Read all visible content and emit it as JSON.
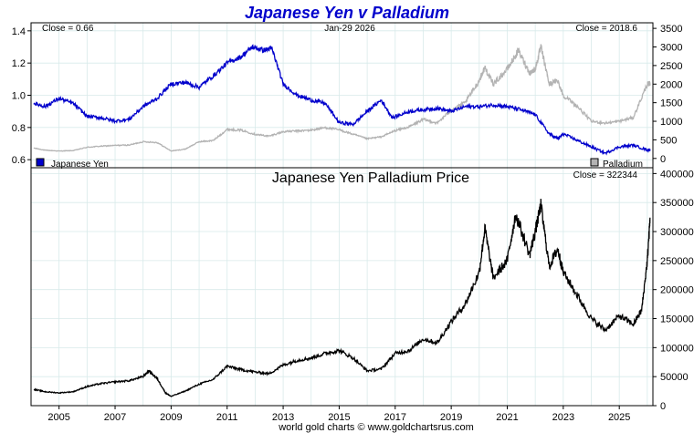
{
  "chart_data": [
    {
      "type": "line",
      "title": "Japanese Yen v Palladium",
      "date_label": "Jan-29  2026",
      "left_close_label": "Close = 0.66",
      "right_close_label": "Close = 2018.6",
      "x_ticks": [
        "2005",
        "2007",
        "2009",
        "2011",
        "2013",
        "2015",
        "2017",
        "2019",
        "2021",
        "2023",
        "2025"
      ],
      "left_axis": {
        "ylim": [
          0.55,
          1.45
        ],
        "ticks": [
          "0.6",
          "0.8",
          "1.0",
          "1.2",
          "1.4"
        ]
      },
      "right_axis": {
        "ylim": [
          -250,
          3650
        ],
        "ticks": [
          "0",
          "500",
          "1000",
          "1500",
          "2000",
          "2500",
          "3000",
          "3500"
        ]
      },
      "series": [
        {
          "name": "Japanese Yen",
          "color": "#0000cc",
          "axis": "left",
          "x": [
            2004.1,
            2004.5,
            2005.0,
            2005.5,
            2006.0,
            2006.5,
            2007.0,
            2007.5,
            2008.0,
            2008.5,
            2009.0,
            2009.5,
            2010.0,
            2010.5,
            2011.0,
            2011.5,
            2011.9,
            2012.3,
            2012.6,
            2013.0,
            2013.5,
            2014.0,
            2014.5,
            2015.0,
            2015.5,
            2016.0,
            2016.5,
            2016.9,
            2017.5,
            2018.0,
            2018.5,
            2019.0,
            2019.5,
            2020.0,
            2020.5,
            2021.0,
            2021.5,
            2022.0,
            2022.5,
            2022.8,
            2023.0,
            2023.5,
            2024.0,
            2024.5,
            2025.0,
            2025.5,
            2026.0,
            2026.1
          ],
          "values": [
            0.95,
            0.93,
            0.98,
            0.95,
            0.87,
            0.86,
            0.84,
            0.85,
            0.93,
            0.98,
            1.07,
            1.08,
            1.05,
            1.12,
            1.2,
            1.24,
            1.3,
            1.28,
            1.29,
            1.07,
            1.0,
            0.97,
            0.95,
            0.83,
            0.82,
            0.9,
            0.97,
            0.86,
            0.9,
            0.91,
            0.92,
            0.9,
            0.93,
            0.93,
            0.94,
            0.93,
            0.91,
            0.88,
            0.76,
            0.73,
            0.76,
            0.72,
            0.68,
            0.64,
            0.68,
            0.69,
            0.66,
            0.66
          ]
        },
        {
          "name": "Palladium",
          "color": "#b3b3b3",
          "axis": "right",
          "x": [
            2004.1,
            2004.5,
            2005.0,
            2005.5,
            2006.0,
            2006.5,
            2007.0,
            2007.5,
            2008.0,
            2008.5,
            2009.0,
            2009.5,
            2010.0,
            2010.5,
            2011.0,
            2011.5,
            2012.0,
            2012.5,
            2013.0,
            2013.5,
            2014.0,
            2014.5,
            2015.0,
            2015.5,
            2016.0,
            2016.5,
            2017.0,
            2017.5,
            2018.0,
            2018.5,
            2019.0,
            2019.5,
            2020.0,
            2020.2,
            2020.5,
            2021.0,
            2021.4,
            2021.8,
            2022.0,
            2022.2,
            2022.5,
            2022.8,
            2023.0,
            2023.5,
            2024.0,
            2024.5,
            2025.0,
            2025.5,
            2026.0,
            2026.1
          ],
          "values": [
            280,
            220,
            200,
            210,
            300,
            330,
            350,
            360,
            450,
            430,
            200,
            250,
            450,
            480,
            780,
            760,
            650,
            600,
            720,
            740,
            760,
            830,
            770,
            650,
            530,
            580,
            750,
            850,
            1050,
            950,
            1300,
            1500,
            2100,
            2450,
            2000,
            2400,
            2900,
            2300,
            2400,
            3000,
            2000,
            2100,
            1700,
            1400,
            1000,
            950,
            1000,
            1100,
            2000,
            2018.6
          ]
        }
      ]
    },
    {
      "type": "line",
      "title": "Japanese Yen Palladium Price",
      "close_label": "Close = 322344",
      "x_ticks": [
        "2005",
        "2007",
        "2009",
        "2011",
        "2013",
        "2015",
        "2017",
        "2019",
        "2021",
        "2023",
        "2025"
      ],
      "ylim": [
        0,
        410000
      ],
      "y_ticks": [
        "0",
        "50000",
        "100000",
        "150000",
        "200000",
        "250000",
        "300000",
        "350000",
        "400000"
      ],
      "series": [
        {
          "name": "Japanese Yen Palladium Price",
          "color": "#000000",
          "x": [
            2004.1,
            2004.5,
            2005.0,
            2005.5,
            2006.0,
            2006.5,
            2007.0,
            2007.5,
            2008.0,
            2008.2,
            2008.5,
            2008.8,
            2009.0,
            2009.5,
            2010.0,
            2010.5,
            2011.0,
            2011.5,
            2012.0,
            2012.5,
            2013.0,
            2013.5,
            2014.0,
            2014.5,
            2015.0,
            2015.5,
            2016.0,
            2016.5,
            2017.0,
            2017.5,
            2018.0,
            2018.5,
            2019.0,
            2019.5,
            2020.0,
            2020.2,
            2020.5,
            2021.0,
            2021.3,
            2021.8,
            2022.0,
            2022.2,
            2022.5,
            2022.8,
            2023.0,
            2023.5,
            2024.0,
            2024.5,
            2025.0,
            2025.5,
            2025.8,
            2026.0,
            2026.1
          ],
          "values": [
            28000,
            24000,
            22000,
            24000,
            33000,
            38000,
            41000,
            43000,
            50000,
            60000,
            47000,
            22000,
            16000,
            25000,
            37000,
            45000,
            68000,
            62000,
            58000,
            55000,
            70000,
            78000,
            82000,
            90000,
            95000,
            82000,
            60000,
            63000,
            90000,
            95000,
            115000,
            108000,
            145000,
            175000,
            230000,
            305000,
            220000,
            250000,
            330000,
            260000,
            300000,
            345000,
            240000,
            270000,
            230000,
            190000,
            150000,
            130000,
            155000,
            140000,
            165000,
            250000,
            322344
          ]
        }
      ]
    }
  ],
  "legend": {
    "yen_label": "Japanese Yen",
    "palladium_label": "Palladium"
  },
  "footer": "world gold charts © www.goldchartsrus.com"
}
